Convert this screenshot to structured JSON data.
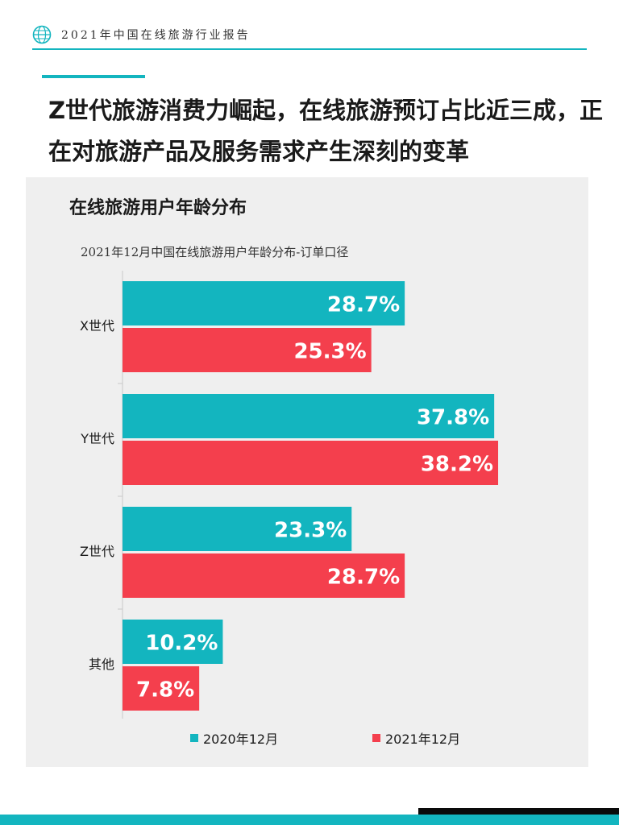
{
  "header": {
    "title": "2021年中国在线旅游行业报告"
  },
  "headline": "Z世代旅游消费力崛起，在线旅游预订占比近三成，正在对旅游产品及服务需求产生深刻的变革",
  "panel": {
    "title": "在线旅游用户年龄分布"
  },
  "colors": {
    "accent": "#13b5bf",
    "series_2020": "#13b5bf",
    "series_2021": "#f43f4d"
  },
  "chart_data": {
    "type": "bar",
    "orientation": "horizontal",
    "title": "2021年12月中国在线旅游用户年龄分布-订单口径",
    "categories": [
      "X世代",
      "Y世代",
      "Z世代",
      "其他"
    ],
    "series": [
      {
        "name": "2020年12月",
        "values": [
          28.7,
          37.8,
          23.3,
          10.2
        ],
        "labels": [
          "28.7%",
          "37.8%",
          "23.3%",
          "10.2%"
        ]
      },
      {
        "name": "2021年12月",
        "values": [
          25.3,
          38.2,
          28.7,
          7.8
        ],
        "labels": [
          "25.3%",
          "38.2%",
          "28.7%",
          "7.8%"
        ]
      }
    ],
    "xlim": [
      0,
      40
    ],
    "grid": false,
    "legend": "bottom"
  }
}
